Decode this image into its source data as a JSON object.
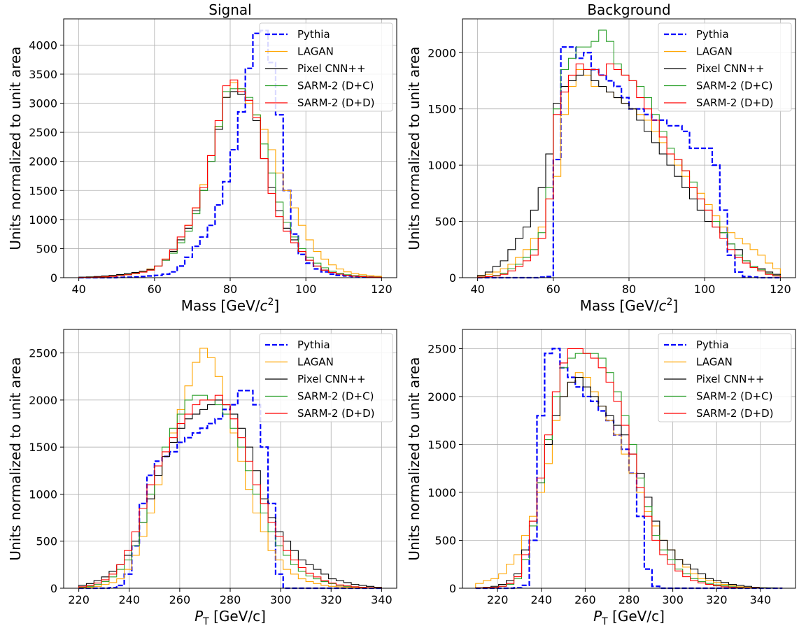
{
  "chart_data": [
    {
      "type": "line",
      "title": "Signal",
      "xlabel": "Mass [GeV/c²]",
      "xlabel_parts": {
        "main": "Mass [GeV/",
        "italic": "c",
        "sup": "2",
        "tail": "]"
      },
      "ylabel": "Units normalized to unit area",
      "xlim": [
        36,
        124
      ],
      "ylim": [
        0,
        4450
      ],
      "xticks": [
        40,
        60,
        80,
        100,
        120
      ],
      "yticks": [
        0,
        500,
        1000,
        1500,
        2000,
        2500,
        3000,
        3500,
        4000
      ],
      "grid": true,
      "legend_position": "top-right",
      "bin_edges_start": 40,
      "bin_width": 2,
      "series": [
        {
          "name": "Pythia",
          "color": "#0000ff",
          "dashed": true,
          "values": [
            0,
            0,
            0,
            0,
            0,
            5,
            8,
            12,
            20,
            30,
            40,
            60,
            100,
            200,
            350,
            540,
            700,
            900,
            1250,
            1650,
            2200,
            2850,
            3600,
            4200,
            4250,
            3700,
            2800,
            1500,
            750,
            400,
            250,
            150,
            100,
            60,
            40,
            30,
            20,
            15,
            10,
            8
          ]
        },
        {
          "name": "LAGAN",
          "color": "#ffa500",
          "dashed": false,
          "values": [
            5,
            8,
            12,
            18,
            25,
            35,
            50,
            70,
            100,
            150,
            200,
            320,
            450,
            650,
            900,
            1200,
            1600,
            2100,
            2600,
            3100,
            3350,
            3250,
            3000,
            2800,
            2550,
            2200,
            1800,
            1500,
            1200,
            900,
            650,
            450,
            320,
            220,
            150,
            100,
            70,
            50,
            35,
            25
          ]
        },
        {
          "name": "Pixel CNN++",
          "color": "#000000",
          "dashed": false,
          "values": [
            10,
            15,
            20,
            30,
            40,
            55,
            70,
            90,
            110,
            140,
            200,
            300,
            450,
            650,
            850,
            1150,
            1500,
            2000,
            2550,
            3100,
            3200,
            3150,
            3050,
            2700,
            2050,
            1550,
            1150,
            850,
            650,
            450,
            300,
            200,
            130,
            90,
            60,
            40,
            30,
            20,
            12,
            8
          ]
        },
        {
          "name": "SARM-2 (D+C)",
          "color": "#2ca02c",
          "dashed": false,
          "values": [
            5,
            8,
            10,
            15,
            25,
            40,
            55,
            75,
            100,
            130,
            200,
            300,
            420,
            600,
            800,
            1100,
            1500,
            2000,
            2600,
            3200,
            3250,
            3250,
            3100,
            2800,
            2300,
            1800,
            1300,
            950,
            700,
            500,
            350,
            250,
            170,
            110,
            75,
            50,
            35,
            25,
            15,
            10
          ]
        },
        {
          "name": "SARM-2 (D+D)",
          "color": "#ff0000",
          "dashed": false,
          "values": [
            5,
            7,
            10,
            14,
            22,
            35,
            50,
            70,
            95,
            130,
            200,
            320,
            480,
            700,
            900,
            1200,
            1550,
            2100,
            2700,
            3300,
            3400,
            3200,
            3050,
            2750,
            2050,
            1450,
            1050,
            800,
            600,
            450,
            300,
            200,
            130,
            90,
            60,
            40,
            25,
            18,
            12,
            8
          ]
        }
      ]
    },
    {
      "type": "line",
      "title": "Background",
      "xlabel": "Mass [GeV/c²]",
      "xlabel_parts": {
        "main": "Mass [GeV/",
        "italic": "c",
        "sup": "2",
        "tail": "]"
      },
      "ylabel": "Units normalized to unit area",
      "xlim": [
        36,
        124
      ],
      "ylim": [
        0,
        2300
      ],
      "xticks": [
        40,
        60,
        80,
        100,
        120
      ],
      "yticks": [
        0,
        500,
        1000,
        1500,
        2000
      ],
      "grid": true,
      "legend_position": "top-right",
      "bin_edges_start": 40,
      "bin_width": 2,
      "series": [
        {
          "name": "Pythia",
          "color": "#0000ff",
          "dashed": true,
          "values": [
            0,
            0,
            0,
            0,
            0,
            0,
            0,
            0,
            5,
            10,
            1050,
            2050,
            2050,
            1950,
            2000,
            1850,
            1800,
            1750,
            1700,
            1600,
            1500,
            1500,
            1450,
            1400,
            1400,
            1350,
            1350,
            1300,
            1150,
            1150,
            1150,
            1000,
            600,
            200,
            50,
            10,
            5,
            0,
            0,
            0
          ]
        },
        {
          "name": "LAGAN",
          "color": "#ffa500",
          "dashed": false,
          "values": [
            15,
            30,
            50,
            80,
            120,
            180,
            250,
            350,
            450,
            700,
            900,
            1450,
            1700,
            1850,
            1800,
            1700,
            1700,
            1650,
            1600,
            1550,
            1500,
            1450,
            1400,
            1300,
            1200,
            1100,
            1000,
            900,
            800,
            750,
            650,
            550,
            450,
            400,
            350,
            300,
            250,
            200,
            130,
            80
          ]
        },
        {
          "name": "Pixel CNN++",
          "color": "#000000",
          "dashed": false,
          "values": [
            20,
            50,
            100,
            150,
            250,
            350,
            450,
            600,
            800,
            1100,
            1550,
            1700,
            1750,
            1800,
            1850,
            1750,
            1700,
            1650,
            1600,
            1550,
            1500,
            1400,
            1300,
            1200,
            1100,
            1000,
            900,
            800,
            700,
            600,
            500,
            450,
            400,
            300,
            250,
            150,
            100,
            80,
            50,
            30
          ]
        },
        {
          "name": "SARM-2 (D+C)",
          "color": "#2ca02c",
          "dashed": false,
          "values": [
            5,
            10,
            20,
            40,
            80,
            120,
            180,
            250,
            400,
            800,
            1500,
            1850,
            1950,
            2050,
            2050,
            2100,
            2200,
            2100,
            1900,
            1800,
            1750,
            1700,
            1600,
            1450,
            1300,
            1150,
            1050,
            950,
            850,
            700,
            600,
            500,
            400,
            300,
            200,
            150,
            100,
            70,
            40,
            20
          ]
        },
        {
          "name": "SARM-2 (D+D)",
          "color": "#ff0000",
          "dashed": false,
          "values": [
            5,
            10,
            15,
            30,
            60,
            100,
            150,
            200,
            350,
            700,
            1450,
            1650,
            1800,
            1900,
            1850,
            1850,
            1800,
            1900,
            1850,
            1800,
            1750,
            1600,
            1500,
            1400,
            1250,
            1100,
            1050,
            950,
            800,
            700,
            600,
            450,
            350,
            250,
            180,
            130,
            90,
            60,
            30,
            15
          ]
        }
      ]
    },
    {
      "type": "line",
      "title": "",
      "xlabel": "P_T [GeV/c]",
      "xlabel_parts": {
        "main": "P",
        "sub": "T",
        "tail": " [GeV/c]"
      },
      "ylabel": "Units normalized to unit area",
      "xlim": [
        214,
        346
      ],
      "ylim": [
        0,
        2750
      ],
      "xticks": [
        220,
        240,
        260,
        280,
        300,
        320,
        340
      ],
      "yticks": [
        0,
        500,
        1000,
        1500,
        2000,
        2500
      ],
      "grid": true,
      "legend_position": "top-right",
      "bin_edges_start": 220,
      "bin_width": 3,
      "series": [
        {
          "name": "Pythia",
          "color": "#0000ff",
          "dashed": true,
          "values": [
            0,
            0,
            0,
            0,
            5,
            30,
            150,
            450,
            900,
            1200,
            1350,
            1400,
            1450,
            1550,
            1600,
            1650,
            1700,
            1750,
            1800,
            1900,
            1950,
            2100,
            2100,
            1950,
            1500,
            900,
            150,
            0,
            0,
            0,
            0,
            0,
            0,
            0,
            0,
            0,
            0,
            0,
            0,
            0
          ]
        },
        {
          "name": "LAGAN",
          "color": "#ffa500",
          "dashed": false,
          "values": [
            5,
            10,
            20,
            40,
            60,
            100,
            200,
            350,
            550,
            800,
            1100,
            1400,
            1650,
            1900,
            2150,
            2400,
            2550,
            2450,
            2250,
            1950,
            1650,
            1350,
            1050,
            800,
            600,
            400,
            300,
            200,
            150,
            100,
            70,
            50,
            30,
            20,
            15,
            10,
            5,
            3,
            2,
            1
          ]
        },
        {
          "name": "Pixel CNN++",
          "color": "#000000",
          "dashed": false,
          "values": [
            30,
            50,
            80,
            120,
            180,
            250,
            350,
            500,
            700,
            950,
            1200,
            1400,
            1550,
            1700,
            1800,
            1850,
            1900,
            1950,
            2000,
            1950,
            1850,
            1700,
            1500,
            1250,
            950,
            750,
            600,
            500,
            400,
            300,
            250,
            200,
            150,
            100,
            80,
            60,
            40,
            30,
            20,
            10
          ]
        },
        {
          "name": "SARM-2 (D+C)",
          "color": "#2ca02c",
          "dashed": false,
          "values": [
            10,
            20,
            40,
            70,
            120,
            200,
            300,
            450,
            700,
            1000,
            1300,
            1500,
            1700,
            1850,
            2000,
            2050,
            2050,
            2000,
            1950,
            1850,
            1700,
            1500,
            1250,
            1000,
            800,
            600,
            450,
            350,
            250,
            180,
            130,
            100,
            70,
            50,
            30,
            20,
            15,
            10,
            5,
            3
          ]
        },
        {
          "name": "SARM-2 (D+D)",
          "color": "#ff0000",
          "dashed": false,
          "values": [
            15,
            30,
            55,
            90,
            150,
            250,
            400,
            600,
            850,
            1100,
            1300,
            1450,
            1600,
            1750,
            1850,
            1950,
            2000,
            2000,
            2050,
            1950,
            1800,
            1600,
            1350,
            1100,
            900,
            700,
            550,
            400,
            300,
            220,
            160,
            120,
            80,
            55,
            35,
            25,
            15,
            10,
            5,
            2
          ]
        }
      ]
    },
    {
      "type": "line",
      "title": "",
      "xlabel": "P_T [GeV/c]",
      "xlabel_parts": {
        "main": "P",
        "sub": "T",
        "tail": " [GeV/c]"
      },
      "ylabel": "Units normalized to unit area",
      "xlim": [
        204,
        356
      ],
      "ylim": [
        0,
        2700
      ],
      "xticks": [
        220,
        240,
        260,
        280,
        300,
        320,
        340
      ],
      "yticks": [
        0,
        500,
        1000,
        1500,
        2000,
        2500
      ],
      "grid": true,
      "legend_position": "top-right",
      "bin_edges_start": 210,
      "bin_width": 3.5,
      "series": [
        {
          "name": "Pythia",
          "color": "#0000ff",
          "dashed": true,
          "values": [
            0,
            0,
            0,
            0,
            0,
            5,
            30,
            500,
            1800,
            2450,
            2500,
            2300,
            2200,
            2100,
            2000,
            1950,
            1850,
            1750,
            1600,
            1450,
            1200,
            750,
            200,
            20,
            0,
            0,
            0,
            0,
            0,
            0,
            0,
            0,
            0,
            0,
            0,
            0,
            0,
            0,
            0,
            0
          ]
        },
        {
          "name": "LAGAN",
          "color": "#ffa500",
          "dashed": false,
          "values": [
            50,
            80,
            100,
            150,
            250,
            350,
            550,
            750,
            1000,
            1300,
            1750,
            2000,
            2150,
            2250,
            2200,
            2050,
            1900,
            1750,
            1600,
            1400,
            1200,
            1000,
            800,
            650,
            500,
            400,
            300,
            220,
            150,
            100,
            80,
            60,
            40,
            25,
            15,
            10,
            5,
            3,
            2,
            1
          ]
        },
        {
          "name": "Pixel CNN++",
          "color": "#000000",
          "dashed": false,
          "values": [
            5,
            10,
            20,
            40,
            80,
            150,
            400,
            700,
            1100,
            1500,
            1800,
            2000,
            2150,
            2200,
            2100,
            2000,
            1900,
            1800,
            1700,
            1600,
            1400,
            1200,
            950,
            700,
            500,
            400,
            300,
            250,
            200,
            150,
            100,
            80,
            60,
            40,
            30,
            20,
            10,
            5,
            3,
            1
          ]
        },
        {
          "name": "SARM-2 (D+C)",
          "color": "#2ca02c",
          "dashed": false,
          "values": [
            2,
            5,
            10,
            20,
            40,
            100,
            300,
            650,
            1100,
            1550,
            2000,
            2300,
            2400,
            2450,
            2450,
            2450,
            2400,
            2250,
            2050,
            1800,
            1500,
            1150,
            850,
            550,
            400,
            300,
            200,
            150,
            100,
            70,
            50,
            35,
            25,
            15,
            10,
            5,
            3,
            2,
            1,
            0
          ]
        },
        {
          "name": "SARM-2 (D+D)",
          "color": "#ff0000",
          "dashed": false,
          "values": [
            2,
            5,
            10,
            20,
            50,
            120,
            350,
            700,
            1150,
            1600,
            2050,
            2350,
            2500,
            2500,
            2450,
            2400,
            2300,
            2150,
            1950,
            1700,
            1400,
            1050,
            750,
            500,
            350,
            250,
            180,
            120,
            80,
            55,
            40,
            25,
            15,
            10,
            5,
            3,
            2,
            1,
            0,
            0
          ]
        }
      ]
    }
  ]
}
